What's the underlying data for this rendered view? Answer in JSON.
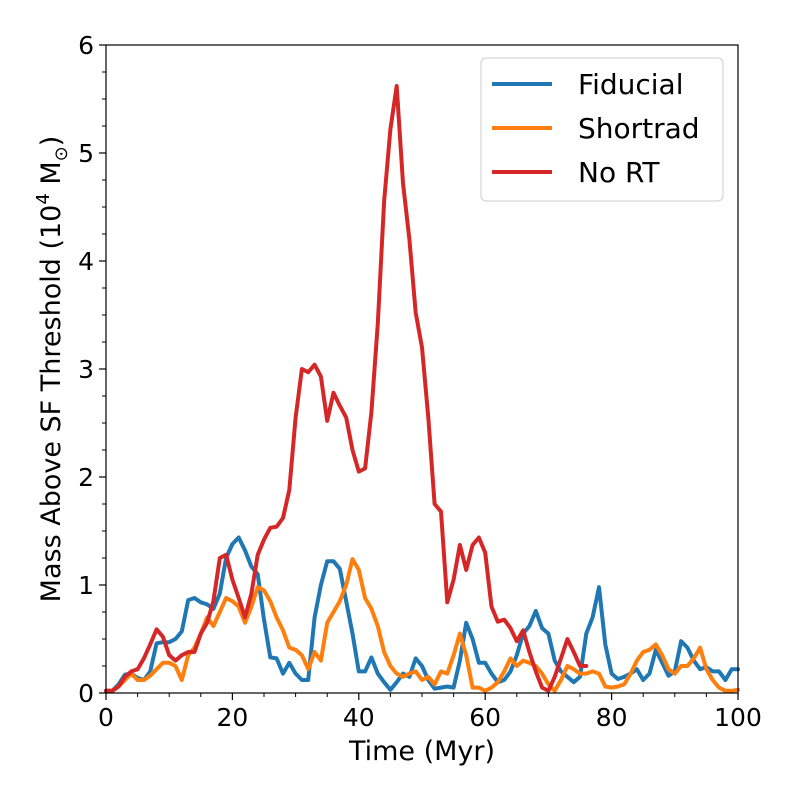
{
  "chart_data": {
    "type": "line",
    "xlabel": "Time (Myr)",
    "ylabel": "Mass Above SF Threshold (10",
    "ylabel_sup": "4",
    "ylabel_unit": " M",
    "ylabel_sub": "⊙",
    "ylabel_close": ")",
    "xlim": [
      0,
      100
    ],
    "ylim": [
      0,
      6
    ],
    "xticks": [
      "0",
      "20",
      "40",
      "60",
      "80",
      "100"
    ],
    "yticks": [
      "0",
      "1",
      "2",
      "3",
      "4",
      "5",
      "6"
    ],
    "legend_position": "top-right",
    "grid": false,
    "series": [
      {
        "name": "Fiducial",
        "color": "#1f77b4",
        "x": [
          0,
          1,
          2,
          3,
          4,
          5,
          6,
          7,
          8,
          9,
          10,
          11,
          12,
          13,
          14,
          15,
          16,
          17,
          18,
          19,
          20,
          21,
          22,
          23,
          24,
          25,
          26,
          27,
          28,
          29,
          30,
          31,
          32,
          33,
          34,
          35,
          36,
          37,
          38,
          39,
          40,
          41,
          42,
          43,
          44,
          45,
          46,
          47,
          48,
          49,
          50,
          51,
          52,
          53,
          54,
          55,
          56,
          57,
          58,
          59,
          60,
          61,
          62,
          63,
          64,
          65,
          66,
          67,
          68,
          69,
          70,
          71,
          72,
          73,
          74,
          75,
          76,
          77,
          78,
          79,
          80,
          81,
          82,
          83,
          84,
          85,
          86,
          87,
          88,
          89,
          90,
          91,
          92,
          93,
          94,
          95,
          96,
          97,
          98,
          99,
          100
        ],
        "y": [
          0.02,
          0.02,
          0.08,
          0.17,
          0.18,
          0.14,
          0.12,
          0.2,
          0.46,
          0.47,
          0.47,
          0.5,
          0.57,
          0.86,
          0.88,
          0.84,
          0.82,
          0.78,
          0.92,
          1.25,
          1.38,
          1.44,
          1.32,
          1.17,
          1.1,
          0.68,
          0.33,
          0.32,
          0.18,
          0.28,
          0.18,
          0.12,
          0.12,
          0.7,
          1.0,
          1.22,
          1.22,
          1.15,
          0.85,
          0.55,
          0.2,
          0.2,
          0.33,
          0.18,
          0.1,
          0.03,
          0.1,
          0.18,
          0.15,
          0.32,
          0.25,
          0.12,
          0.04,
          0.05,
          0.06,
          0.05,
          0.3,
          0.65,
          0.5,
          0.28,
          0.28,
          0.18,
          0.1,
          0.12,
          0.2,
          0.35,
          0.55,
          0.62,
          0.76,
          0.6,
          0.55,
          0.3,
          0.2,
          0.15,
          0.1,
          0.15,
          0.55,
          0.7,
          0.98,
          0.45,
          0.18,
          0.13,
          0.15,
          0.18,
          0.22,
          0.12,
          0.18,
          0.4,
          0.28,
          0.16,
          0.2,
          0.48,
          0.42,
          0.3,
          0.22,
          0.24,
          0.2,
          0.2,
          0.12,
          0.22,
          0.22
        ]
      },
      {
        "name": "Shortrad",
        "color": "#ff7f0e",
        "x": [
          0,
          1,
          2,
          3,
          4,
          5,
          6,
          7,
          8,
          9,
          10,
          11,
          12,
          13,
          14,
          15,
          16,
          17,
          18,
          19,
          20,
          21,
          22,
          23,
          24,
          25,
          26,
          27,
          28,
          29,
          30,
          31,
          32,
          33,
          34,
          35,
          36,
          37,
          38,
          39,
          40,
          41,
          42,
          43,
          44,
          45,
          46,
          47,
          48,
          49,
          50,
          51,
          52,
          53,
          54,
          55,
          56,
          57,
          58,
          59,
          60,
          61,
          62,
          63,
          64,
          65,
          66,
          67,
          68,
          69,
          70,
          71,
          72,
          73,
          74,
          75,
          76,
          77,
          78,
          79,
          80,
          81,
          82,
          83,
          84,
          85,
          86,
          87,
          88,
          89,
          90,
          91,
          92,
          93,
          94,
          95,
          96,
          97,
          98,
          99,
          100
        ],
        "y": [
          0.02,
          0.02,
          0.06,
          0.12,
          0.18,
          0.12,
          0.12,
          0.16,
          0.22,
          0.28,
          0.28,
          0.25,
          0.12,
          0.35,
          0.42,
          0.55,
          0.7,
          0.62,
          0.75,
          0.88,
          0.85,
          0.8,
          0.65,
          0.8,
          0.98,
          0.95,
          0.85,
          0.7,
          0.58,
          0.42,
          0.4,
          0.35,
          0.22,
          0.38,
          0.3,
          0.65,
          0.75,
          0.85,
          1.0,
          1.24,
          1.14,
          0.88,
          0.78,
          0.62,
          0.38,
          0.25,
          0.18,
          0.15,
          0.18,
          0.2,
          0.12,
          0.15,
          0.08,
          0.2,
          0.18,
          0.35,
          0.55,
          0.35,
          0.05,
          0.05,
          0.02,
          0.05,
          0.1,
          0.2,
          0.32,
          0.25,
          0.3,
          0.28,
          0.25,
          0.18,
          0.08,
          0.02,
          0.12,
          0.25,
          0.22,
          0.18,
          0.18,
          0.2,
          0.18,
          0.06,
          0.05,
          0.06,
          0.08,
          0.18,
          0.3,
          0.38,
          0.4,
          0.45,
          0.35,
          0.22,
          0.18,
          0.25,
          0.25,
          0.32,
          0.42,
          0.22,
          0.12,
          0.05,
          0.02,
          0.02,
          0.03
        ]
      },
      {
        "name": "No RT",
        "color": "#d62728",
        "x": [
          0,
          1,
          2,
          3,
          4,
          5,
          6,
          7,
          8,
          9,
          10,
          11,
          12,
          13,
          14,
          15,
          16,
          17,
          18,
          19,
          20,
          21,
          22,
          23,
          24,
          25,
          26,
          27,
          28,
          29,
          30,
          31,
          32,
          33,
          34,
          35,
          36,
          37,
          38,
          39,
          40,
          41,
          42,
          43,
          44,
          45,
          46,
          47,
          48,
          49,
          50,
          51,
          52,
          53,
          54,
          55,
          56,
          57,
          58,
          59,
          60,
          61,
          62,
          63,
          64,
          65,
          66,
          67,
          68,
          69,
          70,
          71,
          72,
          73,
          74,
          75,
          76
        ],
        "y": [
          0.02,
          0.02,
          0.06,
          0.15,
          0.2,
          0.22,
          0.32,
          0.45,
          0.59,
          0.52,
          0.35,
          0.3,
          0.35,
          0.38,
          0.38,
          0.55,
          0.65,
          0.85,
          1.25,
          1.28,
          1.05,
          0.88,
          0.7,
          0.92,
          1.28,
          1.42,
          1.53,
          1.54,
          1.62,
          1.88,
          2.55,
          3.0,
          2.97,
          3.04,
          2.93,
          2.52,
          2.78,
          2.66,
          2.55,
          2.25,
          2.05,
          2.08,
          2.6,
          3.42,
          4.55,
          5.22,
          5.62,
          4.72,
          4.2,
          3.52,
          3.2,
          2.55,
          1.75,
          1.68,
          0.84,
          1.05,
          1.37,
          1.14,
          1.37,
          1.44,
          1.3,
          0.8,
          0.66,
          0.68,
          0.6,
          0.48,
          0.58,
          0.38,
          0.2,
          0.05,
          0.02,
          0.15,
          0.32,
          0.5,
          0.38,
          0.25,
          0.25
        ]
      }
    ]
  }
}
